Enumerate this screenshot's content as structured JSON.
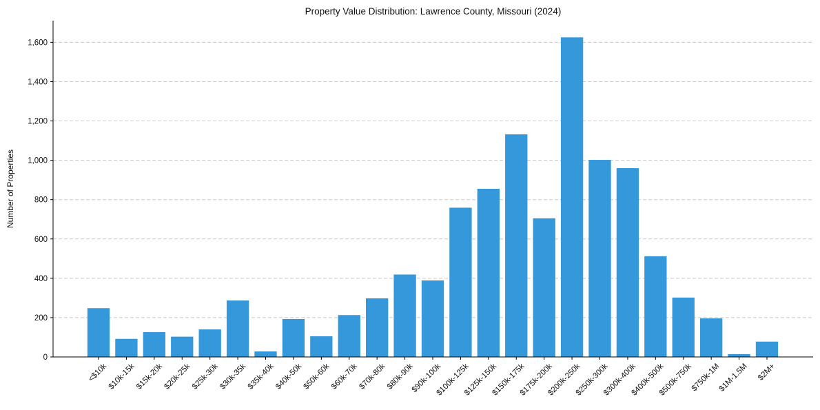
{
  "chart_data": {
    "type": "bar",
    "title": "Property Value Distribution: Lawrence County, Missouri (2024)",
    "xlabel": "",
    "ylabel": "Number of Properties",
    "ylim": [
      0,
      1710
    ],
    "yticks": [
      0,
      200,
      400,
      600,
      800,
      1000,
      1200,
      1400,
      1600
    ],
    "ytick_labels": [
      "0",
      "200",
      "400",
      "600",
      "800",
      "1,000",
      "1,200",
      "1,400",
      "1,600"
    ],
    "grid": "horizontal dashed",
    "bar_color": "#3498db",
    "categories": [
      "<$10k",
      "$10k-15k",
      "$15k-20k",
      "$20k-25k",
      "$25k-30k",
      "$30k-35k",
      "$35k-40k",
      "$40k-50k",
      "$50k-60k",
      "$60k-70k",
      "$70k-80k",
      "$80k-90k",
      "$90k-100k",
      "$100k-125k",
      "$125k-150k",
      "$150k-175k",
      "$175k-200k",
      "$200k-250k",
      "$250k-300k",
      "$300k-400k",
      "$400k-500k",
      "$500k-750k",
      "$750k-1M",
      "$1M-1.5M",
      "$2M+"
    ],
    "values": [
      248,
      92,
      126,
      103,
      140,
      287,
      28,
      193,
      105,
      213,
      298,
      419,
      389,
      759,
      855,
      1132,
      705,
      1625,
      1002,
      960,
      512,
      302,
      196,
      14,
      78
    ]
  }
}
